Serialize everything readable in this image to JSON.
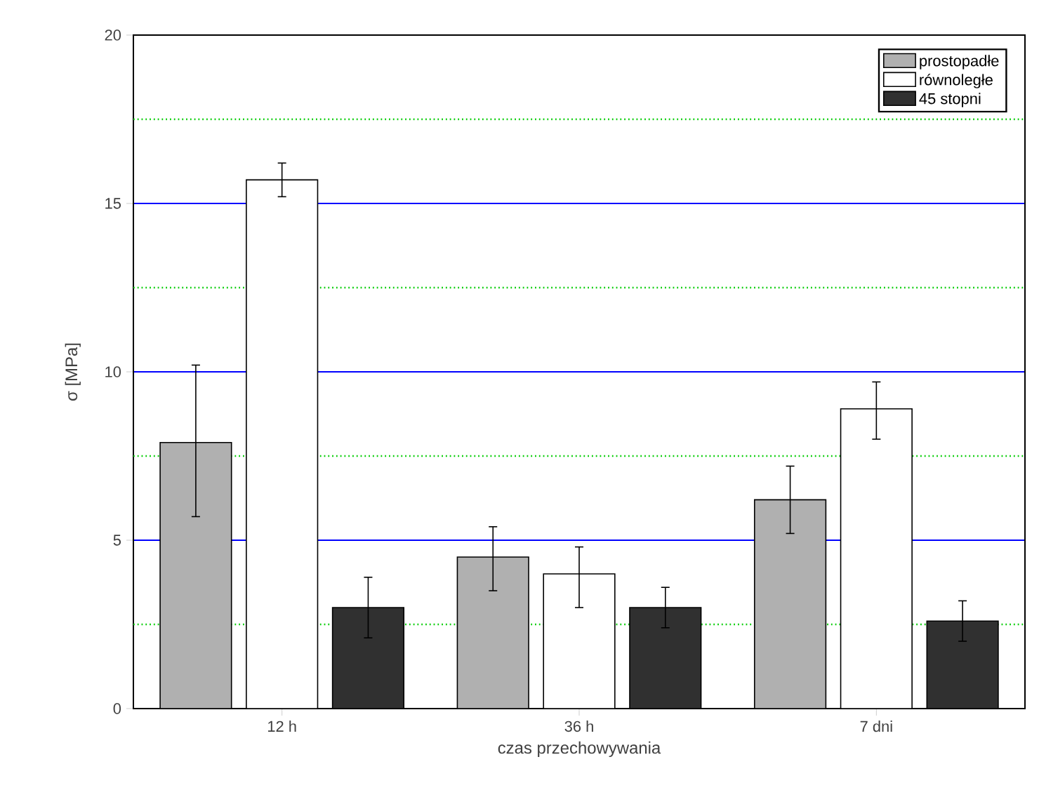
{
  "chart_data": {
    "type": "bar",
    "xlabel": "czas przechowywania",
    "ylabel": "σ [MPa]",
    "categories": [
      "12 h",
      "36 h",
      "7 dni"
    ],
    "series": [
      {
        "name": "prostopadłe",
        "color": "#b0b0b0",
        "values": [
          7.9,
          4.5,
          6.2
        ],
        "errors": [
          [
            5.7,
            10.2
          ],
          [
            3.5,
            5.4
          ],
          [
            5.2,
            7.2
          ]
        ]
      },
      {
        "name": "równoległe",
        "color": "#ffffff",
        "values": [
          15.7,
          4.0,
          8.9
        ],
        "errors": [
          [
            15.2,
            16.2
          ],
          [
            3.0,
            4.8
          ],
          [
            8.0,
            9.7
          ]
        ]
      },
      {
        "name": "45 stopni",
        "color": "#303030",
        "values": [
          3.0,
          3.0,
          2.6
        ],
        "errors": [
          [
            2.1,
            3.9
          ],
          [
            2.4,
            3.6
          ],
          [
            2.0,
            3.2
          ]
        ]
      }
    ],
    "ylim": [
      0,
      20
    ],
    "yticks": [
      0,
      5,
      10,
      15,
      20,
      {
        "value": 2.5,
        "label": null
      },
      {
        "value": 7.5,
        "label": null
      },
      {
        "value": 12.5,
        "label": null
      },
      {
        "value": 17.5,
        "label": null
      }
    ],
    "grid": "y",
    "legend": "top right"
  }
}
